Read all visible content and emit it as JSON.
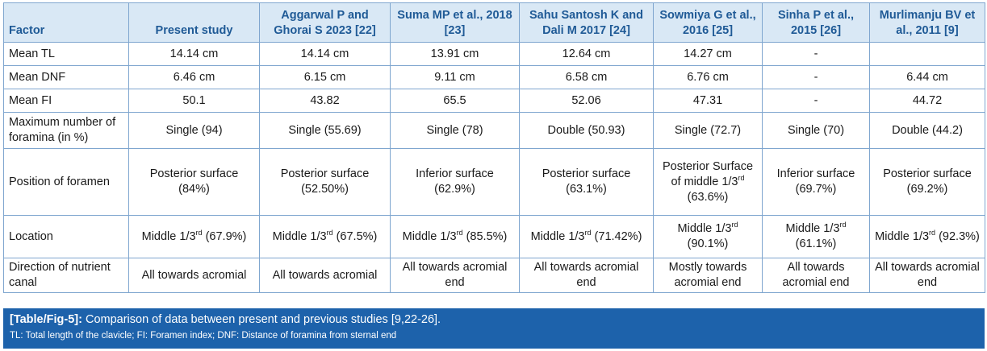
{
  "table": {
    "headers": [
      "Factor",
      "Present study",
      "Aggarwal P and Ghorai S 2023 [22]",
      "Suma MP et al., 2018 [23]",
      "Sahu Santosh K and Dali M 2017 [24]",
      "Sowmiya G et al., 2016 [25]",
      "Sinha P et al., 2015 [26]",
      "Murlimanju BV et al., 2011 [9]"
    ],
    "rows": [
      {
        "factor": "Mean TL",
        "values": [
          "14.14 cm",
          "14.14 cm",
          "13.91 cm",
          "12.64 cm",
          "14.27 cm",
          "-",
          ""
        ]
      },
      {
        "factor": "Mean DNF",
        "values": [
          "6.46 cm",
          "6.15 cm",
          "9.11 cm",
          "6.58 cm",
          "6.76 cm",
          "-",
          "6.44 cm"
        ]
      },
      {
        "factor": "Mean FI",
        "values": [
          "50.1",
          "43.82",
          "65.5",
          "52.06",
          "47.31",
          "-",
          "44.72"
        ]
      },
      {
        "factor": "Maximum number of foramina (in %)",
        "values": [
          "Single (94)",
          "Single (55.69)",
          "Single (78)",
          "Double (50.93)",
          "Single (72.7)",
          "Single (70)",
          "Double (44.2)"
        ]
      },
      {
        "factor": "Position of foramen",
        "values": [
          "Posterior surface (84%)",
          "Posterior surface (52.50%)",
          "Inferior surface (62.9%)",
          "Posterior surface (63.1%)",
          "Posterior Surface of middle 1/3rd (63.6%)",
          "Inferior surface (69.7%)",
          "Posterior surface (69.2%)"
        ]
      },
      {
        "factor": "Location",
        "values": [
          "Middle 1/3rd (67.9%)",
          "Middle 1/3rd (67.5%)",
          "Middle 1/3rd (85.5%)",
          "Middle 1/3rd (71.42%)",
          "Middle 1/3rd (90.1%)",
          "Middle 1/3rd (61.1%)",
          "Middle 1/3rd (92.3%)"
        ]
      },
      {
        "factor": "Direction of nutrient canal",
        "values": [
          "All towards acromial",
          "All towards acromial",
          "All towards acromial end",
          "All towards acromial end",
          "Mostly towards acromial end",
          "All towards acromial end",
          "All towards acromial end"
        ]
      }
    ]
  },
  "caption": {
    "label": "[Table/Fig-5]:",
    "text": "Comparison of data between present and previous studies [9,22-26].",
    "note": "TL: Total length of the clavicle; FI: Foramen index; DNF: Distance of foramina from sternal end"
  },
  "colors": {
    "header_bg": "#d9e8f5",
    "header_text": "#1f5a96",
    "border": "#7fa6cf",
    "caption_bg": "#1d62ab",
    "caption_text": "#ffffff"
  }
}
